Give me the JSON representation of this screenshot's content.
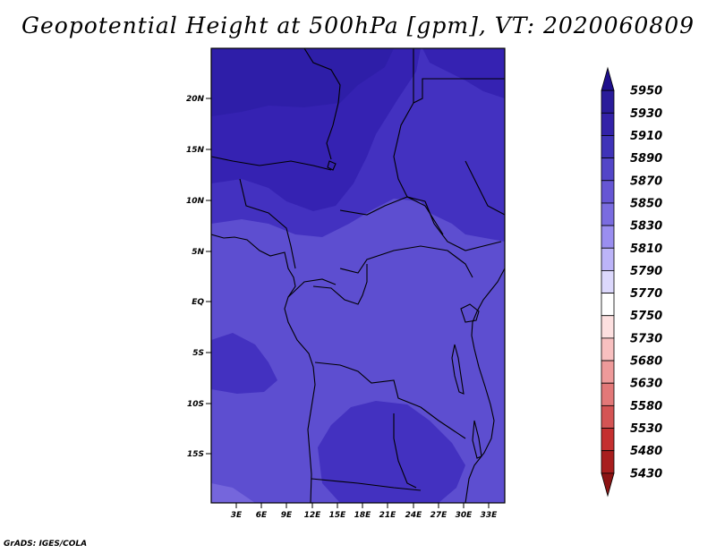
{
  "title": "Geopotential Height at 500hPa [gpm], VT: 2020060809",
  "credit": "GrADS: IGES/COLA",
  "map": {
    "lat_ticks": [
      "20N",
      "15N",
      "10N",
      "5N",
      "EQ",
      "5S",
      "10S",
      "15S"
    ],
    "lon_ticks": [
      "3E",
      "6E",
      "9E",
      "12E",
      "15E",
      "18E",
      "21E",
      "24E",
      "27E",
      "30E",
      "33E"
    ]
  },
  "colorbar": {
    "levels": [
      "5950",
      "5930",
      "5910",
      "5890",
      "5870",
      "5850",
      "5830",
      "5810",
      "5790",
      "5770",
      "5750",
      "5730",
      "5680",
      "5630",
      "5580",
      "5530",
      "5480",
      "5430"
    ],
    "colors": [
      "#1e0f8c",
      "#2a1c9a",
      "#3322a8",
      "#3f33b8",
      "#5346c8",
      "#6656d4",
      "#7a6ce0",
      "#9a8ef0",
      "#bcb4f8",
      "#dcd8fc",
      "#ffffff",
      "#fde0e0",
      "#f8c0c0",
      "#ee9a9a",
      "#e27878",
      "#d45454",
      "#c43030",
      "#a81e1e",
      "#8c1414"
    ]
  },
  "field_colors": {
    "c5930": "#2e1ea8",
    "c5910": "#3522b2",
    "c5890": "#4331c0",
    "c5870": "#5d4ed0",
    "c5850": "#7566dc"
  }
}
